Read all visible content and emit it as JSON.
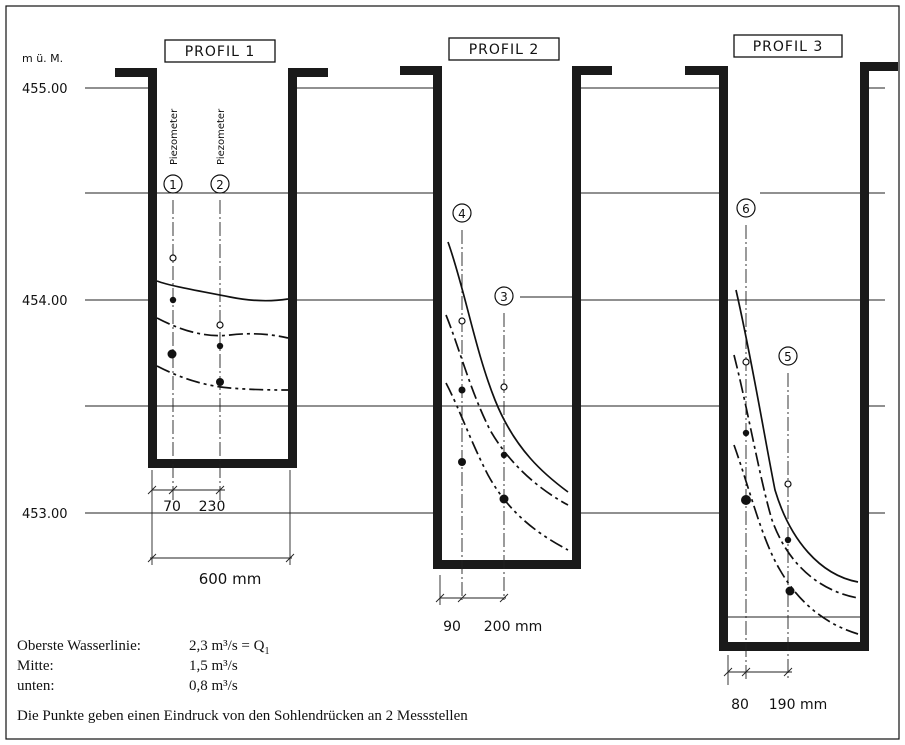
{
  "unit_label": "m ü. M.",
  "elevation_labels": [
    "455.00",
    "454.00",
    "453.00"
  ],
  "profiles": [
    {
      "title": "PROFIL 1",
      "piezometer_label": "Piezometer",
      "points": [
        "1",
        "2"
      ],
      "dims": [
        "70",
        "230",
        "600 mm"
      ]
    },
    {
      "title": "PROFIL 2",
      "points": [
        "4",
        "3"
      ],
      "dims": [
        "90",
        "200 mm"
      ]
    },
    {
      "title": "PROFIL 3",
      "points": [
        "6",
        "5"
      ],
      "dims": [
        "80",
        "190 mm"
      ]
    }
  ],
  "legend": {
    "oberste_label": "Oberste Wasserlinie:",
    "oberste_value": "2,3 m³/s = Q",
    "oberste_sub": "1",
    "mitte_label": "Mitte:",
    "mitte_value": "1,5 m³/s",
    "unten_label": "unten:",
    "unten_value": "0,8 m³/s",
    "note": "Die Punkte geben einen Eindruck von den Sohlendrücken an 2 Messstellen"
  }
}
